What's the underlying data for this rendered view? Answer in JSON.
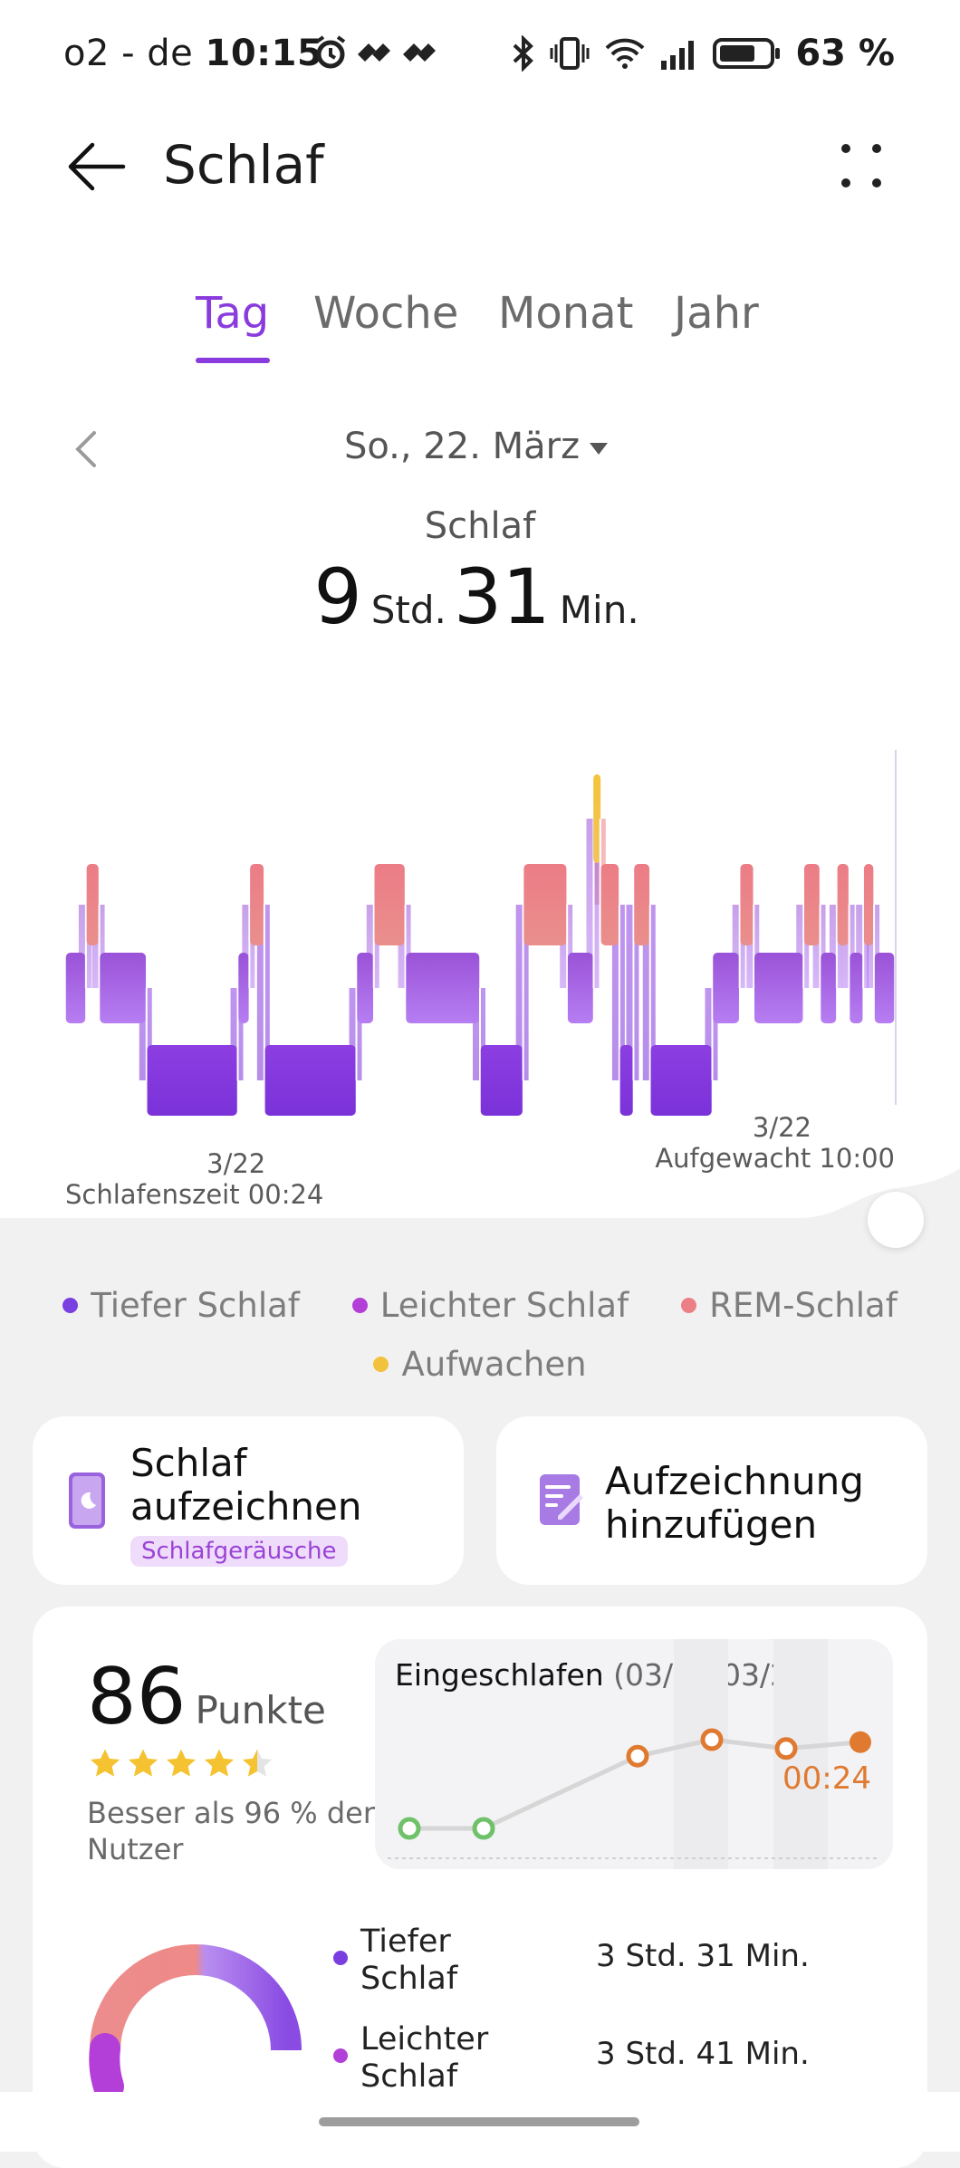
{
  "status_bar": {
    "carrier": "o2 - de",
    "time": "10:15",
    "battery": "63 %"
  },
  "app_bar": {
    "title": "Schlaf"
  },
  "tabs": [
    {
      "label": "Tag",
      "active": true
    },
    {
      "label": "Woche",
      "active": false
    },
    {
      "label": "Monat",
      "active": false
    },
    {
      "label": "Jahr",
      "active": false
    }
  ],
  "date_selector": {
    "date": "So., 22. März"
  },
  "summary": {
    "label": "Schlaf",
    "hours": "9",
    "hours_unit": "Std.",
    "minutes": "31",
    "minutes_unit": "Min."
  },
  "chart_data": {
    "type": "hypnogram",
    "stages": [
      "REM-Schlaf",
      "Leichter Schlaf",
      "Tiefer Schlaf"
    ],
    "start_date": "3/22",
    "start_label": "Schlafenszeit 00:24",
    "end_date": "3/22",
    "end_label": "Aufgewacht 10:00",
    "segments": [
      {
        "stage": "light",
        "from": 0.0,
        "to": 0.025
      },
      {
        "stage": "rem",
        "from": 0.025,
        "to": 0.041
      },
      {
        "stage": "light",
        "from": 0.041,
        "to": 0.098
      },
      {
        "stage": "deep",
        "from": 0.098,
        "to": 0.208
      },
      {
        "stage": "light",
        "from": 0.208,
        "to": 0.222
      },
      {
        "stage": "rem",
        "from": 0.222,
        "to": 0.24
      },
      {
        "stage": "deep",
        "from": 0.24,
        "to": 0.351
      },
      {
        "stage": "light",
        "from": 0.351,
        "to": 0.372
      },
      {
        "stage": "rem",
        "from": 0.372,
        "to": 0.41
      },
      {
        "stage": "light",
        "from": 0.41,
        "to": 0.5
      },
      {
        "stage": "deep",
        "from": 0.5,
        "to": 0.552
      },
      {
        "stage": "rem",
        "from": 0.552,
        "to": 0.605
      },
      {
        "stage": "light",
        "from": 0.605,
        "to": 0.637
      },
      {
        "stage": "wake",
        "from": 0.637,
        "to": 0.645
      },
      {
        "stage": "rem",
        "from": 0.645,
        "to": 0.668
      },
      {
        "stage": "deep",
        "from": 0.668,
        "to": 0.685
      },
      {
        "stage": "rem",
        "from": 0.685,
        "to": 0.705
      },
      {
        "stage": "deep",
        "from": 0.705,
        "to": 0.78
      },
      {
        "stage": "light",
        "from": 0.78,
        "to": 0.813
      },
      {
        "stage": "rem",
        "from": 0.813,
        "to": 0.83
      },
      {
        "stage": "light",
        "from": 0.83,
        "to": 0.89
      },
      {
        "stage": "rem",
        "from": 0.89,
        "to": 0.91
      },
      {
        "stage": "light",
        "from": 0.91,
        "to": 0.93
      },
      {
        "stage": "rem",
        "from": 0.93,
        "to": 0.945
      },
      {
        "stage": "light",
        "from": 0.945,
        "to": 0.962
      },
      {
        "stage": "rem",
        "from": 0.962,
        "to": 0.975
      },
      {
        "stage": "light",
        "from": 0.975,
        "to": 1.0
      }
    ]
  },
  "legend": [
    {
      "label": "Tiefer Schlaf",
      "color": "#7a3fe0"
    },
    {
      "label": "Leichter Schlaf",
      "color": "#b23fd8"
    },
    {
      "label": "REM-Schlaf",
      "color": "#ec7f86"
    },
    {
      "label": "Aufwachen",
      "color": "#f2c23c"
    }
  ],
  "cards": {
    "record_title": "Schlaf aufzeichnen",
    "record_title_line1": "Schlaf",
    "record_title_line2": "aufzeichnen",
    "record_chip": "Schlafgeräusche",
    "add_title_line1": "Aufzeichnung",
    "add_title_line2": "hinzufügen"
  },
  "score": {
    "value": "86",
    "unit": "Punkte",
    "stars": 4.5,
    "comparison": "Besser als 96 % der Nutzer"
  },
  "trend": {
    "title": "Eingeschlafen",
    "range": "(03/16-03/22)",
    "latest": "00:24",
    "points": [
      {
        "day": "03/16",
        "state": "green",
        "y": 0.15
      },
      {
        "day": "03/17",
        "state": "green",
        "y": 0.15
      },
      {
        "day": "03/19",
        "state": "orange",
        "y": 0.72
      },
      {
        "day": "03/20",
        "state": "orange",
        "y": 0.85
      },
      {
        "day": "03/21",
        "state": "orange",
        "y": 0.78
      },
      {
        "day": "03/22",
        "state": "current",
        "y": 0.83
      }
    ]
  },
  "stages_breakdown": [
    {
      "line1": "Tiefer",
      "line2": "Schlaf",
      "value": "3 Std. 31 Min.",
      "color": "#7a3fe0"
    },
    {
      "line1": "Leichter",
      "line2": "Schlaf",
      "value": "3 Std. 41 Min.",
      "color": "#b23fd8"
    }
  ]
}
